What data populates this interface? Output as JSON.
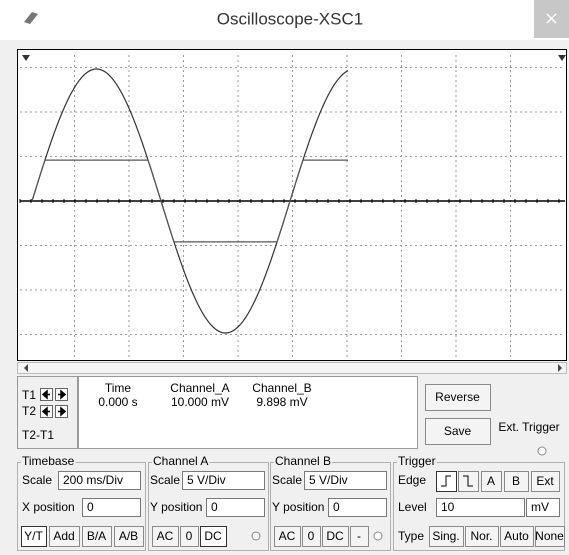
{
  "window": {
    "title": "Oscilloscope-XSC1"
  },
  "cursors": {
    "t1": "T1",
    "t2": "T2",
    "diff": "T2-T1"
  },
  "readout": {
    "headers": [
      "Time",
      "Channel_A",
      "Channel_B"
    ],
    "values": [
      "0.000 s",
      "10.000 mV",
      "9.898 mV"
    ]
  },
  "buttons": {
    "reverse": "Reverse",
    "save": "Save"
  },
  "ext_trigger": "Ext. Trigger",
  "timebase": {
    "label": "Timebase",
    "scale_label": "Scale",
    "scale": "200 ms/Div",
    "pos_label": "X position",
    "pos": "0",
    "modes": [
      "Y/T",
      "Add",
      "B/A",
      "A/B"
    ]
  },
  "channel_a": {
    "label": "Channel A",
    "scale_label": "Scale",
    "scale": "5 V/Div",
    "pos_label": "Y position",
    "pos": "0",
    "coupling": [
      "AC",
      "0",
      "DC"
    ]
  },
  "channel_b": {
    "label": "Channel B",
    "scale_label": "Scale",
    "scale": "5 V/Div",
    "pos_label": "Y position",
    "pos": "0",
    "coupling": [
      "AC",
      "0",
      "DC",
      "-"
    ]
  },
  "trigger": {
    "label": "Trigger",
    "edge_label": "Edge",
    "sources": [
      "A",
      "B",
      "Ext"
    ],
    "level_label": "Level",
    "level": "10",
    "level_unit": "mV",
    "type_label": "Type",
    "types": [
      "Sing.",
      "Nor.",
      "Auto",
      "None"
    ]
  }
}
